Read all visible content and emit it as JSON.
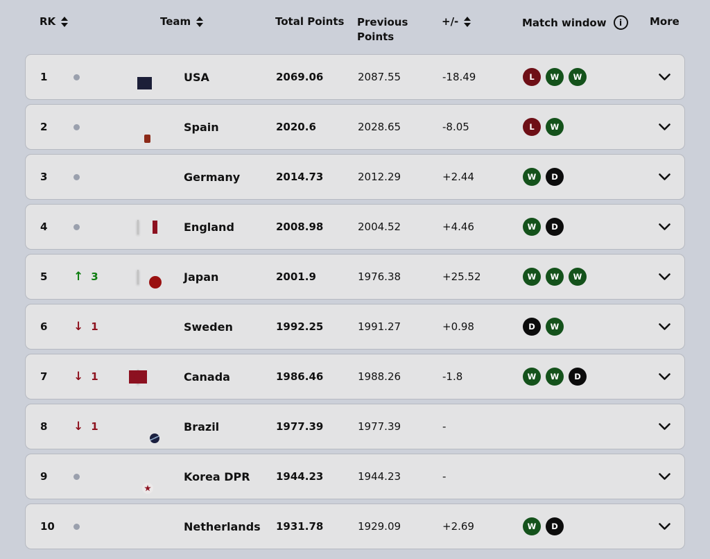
{
  "table": {
    "headers": {
      "rank": "RK",
      "team": "Team",
      "total_points": "Total Points",
      "previous_points": "Previous Points",
      "plus_minus": "+/-",
      "match_window": "Match window",
      "more": "More"
    },
    "rows": [
      {
        "rank": "1",
        "movement": "same",
        "movement_value": "",
        "team": "USA",
        "flag": "usa",
        "total": "2069.06",
        "previous": "2087.55",
        "diff": "-18.49",
        "matches": [
          "L",
          "W",
          "W"
        ]
      },
      {
        "rank": "2",
        "movement": "same",
        "movement_value": "",
        "team": "Spain",
        "flag": "esp",
        "total": "2020.6",
        "previous": "2028.65",
        "diff": "-8.05",
        "matches": [
          "L",
          "W"
        ]
      },
      {
        "rank": "3",
        "movement": "same",
        "movement_value": "",
        "team": "Germany",
        "flag": "ger",
        "total": "2014.73",
        "previous": "2012.29",
        "diff": "+2.44",
        "matches": [
          "W",
          "D"
        ]
      },
      {
        "rank": "4",
        "movement": "same",
        "movement_value": "",
        "team": "England",
        "flag": "eng",
        "total": "2008.98",
        "previous": "2004.52",
        "diff": "+4.46",
        "matches": [
          "W",
          "D"
        ]
      },
      {
        "rank": "5",
        "movement": "up",
        "movement_value": "3",
        "team": "Japan",
        "flag": "jpn",
        "total": "2001.9",
        "previous": "1976.38",
        "diff": "+25.52",
        "matches": [
          "W",
          "W",
          "W"
        ]
      },
      {
        "rank": "6",
        "movement": "down",
        "movement_value": "1",
        "team": "Sweden",
        "flag": "swe",
        "total": "1992.25",
        "previous": "1991.27",
        "diff": "+0.98",
        "matches": [
          "D",
          "W"
        ]
      },
      {
        "rank": "7",
        "movement": "down",
        "movement_value": "1",
        "team": "Canada",
        "flag": "can",
        "total": "1986.46",
        "previous": "1988.26",
        "diff": "-1.8",
        "matches": [
          "W",
          "W",
          "D"
        ]
      },
      {
        "rank": "8",
        "movement": "down",
        "movement_value": "1",
        "team": "Brazil",
        "flag": "bra",
        "total": "1977.39",
        "previous": "1977.39",
        "diff": "-",
        "matches": []
      },
      {
        "rank": "9",
        "movement": "same",
        "movement_value": "",
        "team": "Korea DPR",
        "flag": "prk",
        "total": "1944.23",
        "previous": "1944.23",
        "diff": "-",
        "matches": []
      },
      {
        "rank": "10",
        "movement": "same",
        "movement_value": "",
        "team": "Netherlands",
        "flag": "ned",
        "total": "1931.78",
        "previous": "1929.09",
        "diff": "+2.69",
        "matches": [
          "W",
          "D"
        ]
      }
    ]
  },
  "icons": {
    "up_arrow": "↑",
    "down_arrow": "↓",
    "info": "i"
  },
  "colors": {
    "win_badge": "#14521b",
    "loss_badge": "#6e0f16",
    "draw_badge": "#0c0c0c",
    "up_movement": "#0e7d10",
    "down_movement": "#8e1420",
    "page_background": "#ccd0d9",
    "row_background": "#e3e3e4"
  }
}
